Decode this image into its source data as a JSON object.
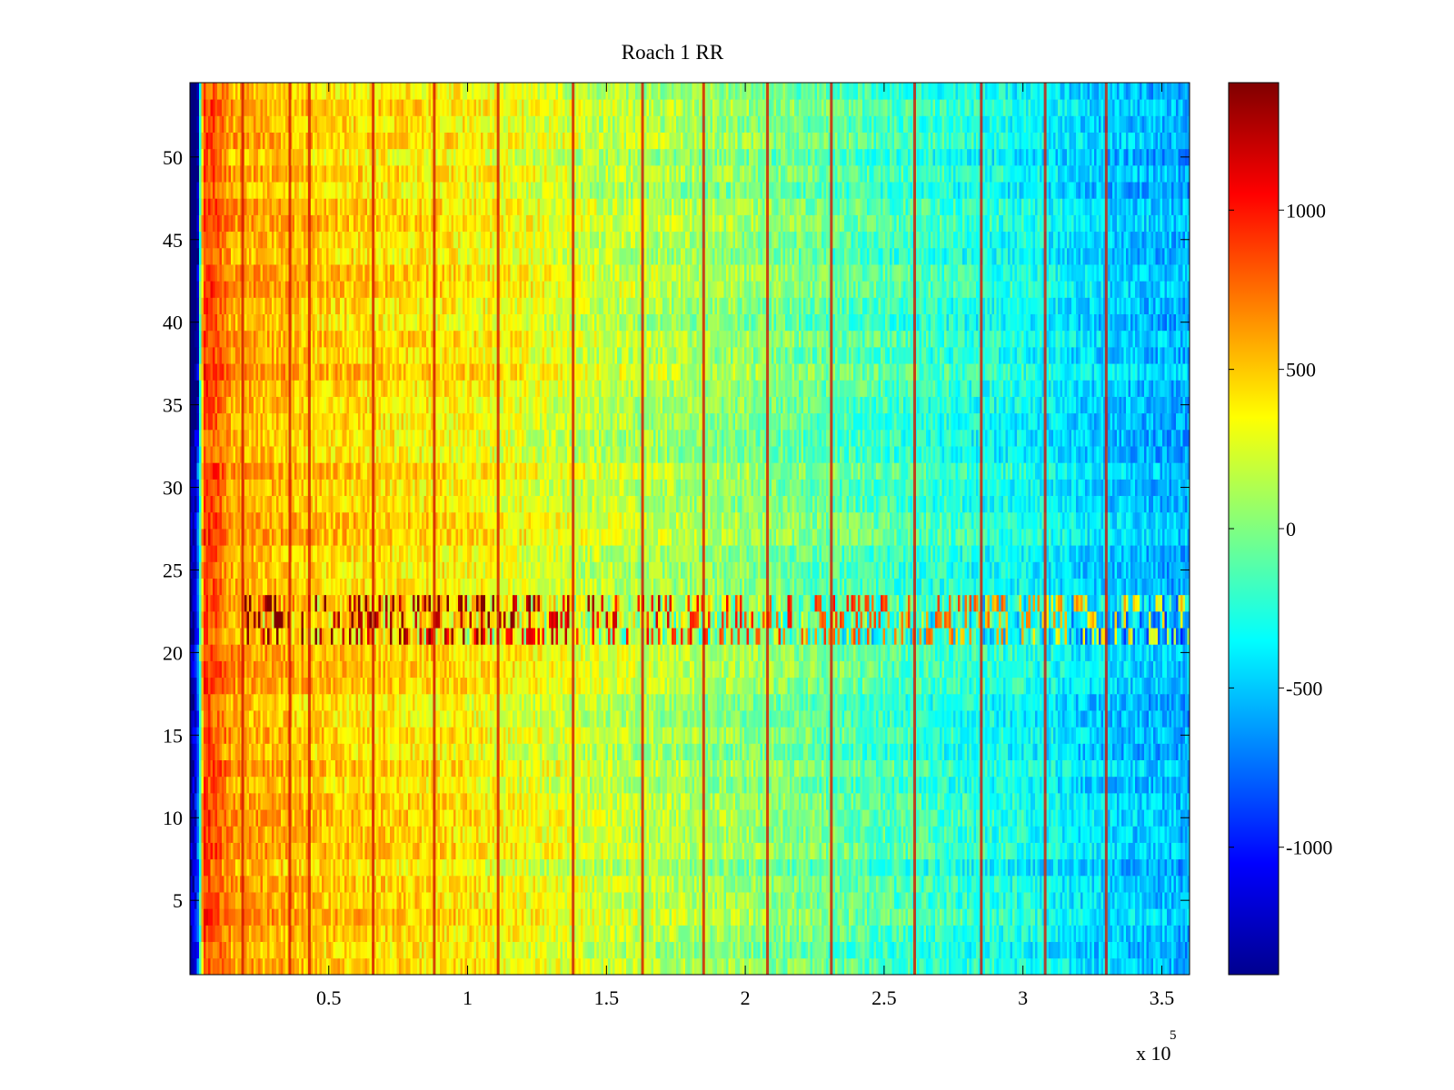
{
  "chart_data": {
    "type": "heatmap",
    "title": "Roach 1 RR",
    "xlabel": "",
    "ylabel": "",
    "x_multiplier_label": "x 10",
    "x_multiplier_exponent": "5",
    "xlim": [
      0,
      360000
    ],
    "ylim": [
      0.5,
      54.5
    ],
    "x_ticks": [
      {
        "value": 50000,
        "label": "0.5"
      },
      {
        "value": 100000,
        "label": "1"
      },
      {
        "value": 150000,
        "label": "1.5"
      },
      {
        "value": 200000,
        "label": "2"
      },
      {
        "value": 250000,
        "label": "2.5"
      },
      {
        "value": 300000,
        "label": "3"
      },
      {
        "value": 350000,
        "label": "3.5"
      }
    ],
    "y_ticks": [
      {
        "value": 5,
        "label": "5"
      },
      {
        "value": 10,
        "label": "10"
      },
      {
        "value": 15,
        "label": "15"
      },
      {
        "value": 20,
        "label": "20"
      },
      {
        "value": 25,
        "label": "25"
      },
      {
        "value": 30,
        "label": "30"
      },
      {
        "value": 35,
        "label": "35"
      },
      {
        "value": 40,
        "label": "40"
      },
      {
        "value": 45,
        "label": "45"
      },
      {
        "value": 50,
        "label": "50"
      }
    ],
    "rows": 54,
    "colormap": "jet",
    "clim": [
      -1400,
      1400
    ],
    "colorbar_ticks": [
      {
        "value": 1000,
        "label": "1000"
      },
      {
        "value": 500,
        "label": "500"
      },
      {
        "value": 0,
        "label": "0"
      },
      {
        "value": -500,
        "label": "-500"
      },
      {
        "value": -1000,
        "label": "-1000"
      }
    ],
    "column_profile": [
      {
        "x": 0,
        "value": -1350
      },
      {
        "x": 2500,
        "value": -1100
      },
      {
        "x": 5000,
        "value": 900
      },
      {
        "x": 10000,
        "value": 800
      },
      {
        "x": 15000,
        "value": 600
      },
      {
        "x": 50000,
        "value": 470
      },
      {
        "x": 100000,
        "value": 380
      },
      {
        "x": 150000,
        "value": 180
      },
      {
        "x": 200000,
        "value": 40
      },
      {
        "x": 250000,
        "value": -160
      },
      {
        "x": 300000,
        "value": -320
      },
      {
        "x": 330000,
        "value": -480
      },
      {
        "x": 360000,
        "value": -580
      }
    ],
    "stripe_x": [
      19000,
      36000,
      43000,
      66000,
      88000,
      111000,
      138000,
      163000,
      185000,
      208000,
      231000,
      261000,
      285000,
      308000,
      330000
    ],
    "anomalous_rows": [
      21,
      22,
      23
    ],
    "colorbar_colors": [
      "#00008f",
      "#0000ff",
      "#0080ff",
      "#00ffff",
      "#80ff80",
      "#ffff00",
      "#ff8000",
      "#ff0000",
      "#800000"
    ]
  }
}
